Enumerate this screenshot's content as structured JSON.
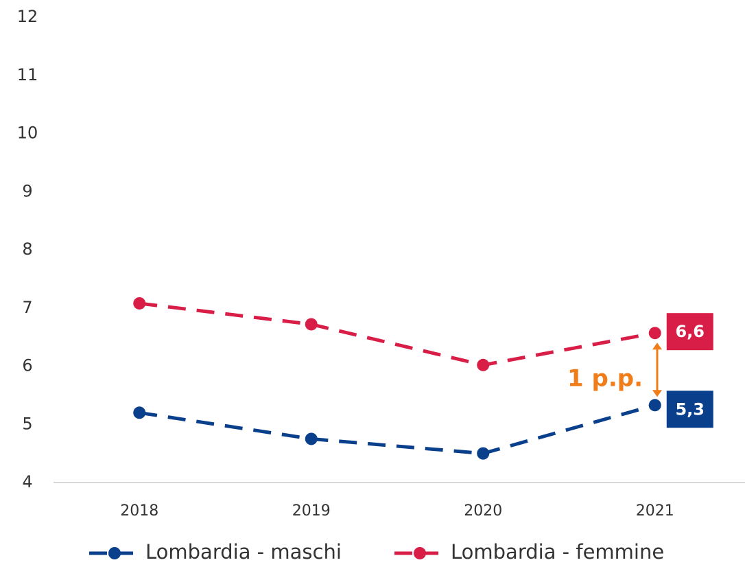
{
  "chart_data": {
    "type": "line",
    "categories": [
      "2018",
      "2019",
      "2020",
      "2021"
    ],
    "series": [
      {
        "name": "Lombardia - maschi",
        "color": "#0a3f8c",
        "values": [
          5.2,
          4.75,
          4.5,
          5.33
        ],
        "value_labels": [
          null,
          null,
          null,
          "5,3"
        ]
      },
      {
        "name": "Lombardia - femmine",
        "color": "#d81e47",
        "values": [
          7.08,
          6.72,
          6.02,
          6.57
        ],
        "value_labels": [
          null,
          null,
          null,
          "6,6"
        ]
      }
    ],
    "ylim": [
      4,
      12
    ],
    "yticks": [
      4,
      5,
      6,
      7,
      8,
      9,
      10,
      11,
      12
    ],
    "grid": false,
    "legend": "bottom",
    "annotations": [
      {
        "text": "1 p.p.",
        "color": "#f07c1a"
      }
    ]
  }
}
